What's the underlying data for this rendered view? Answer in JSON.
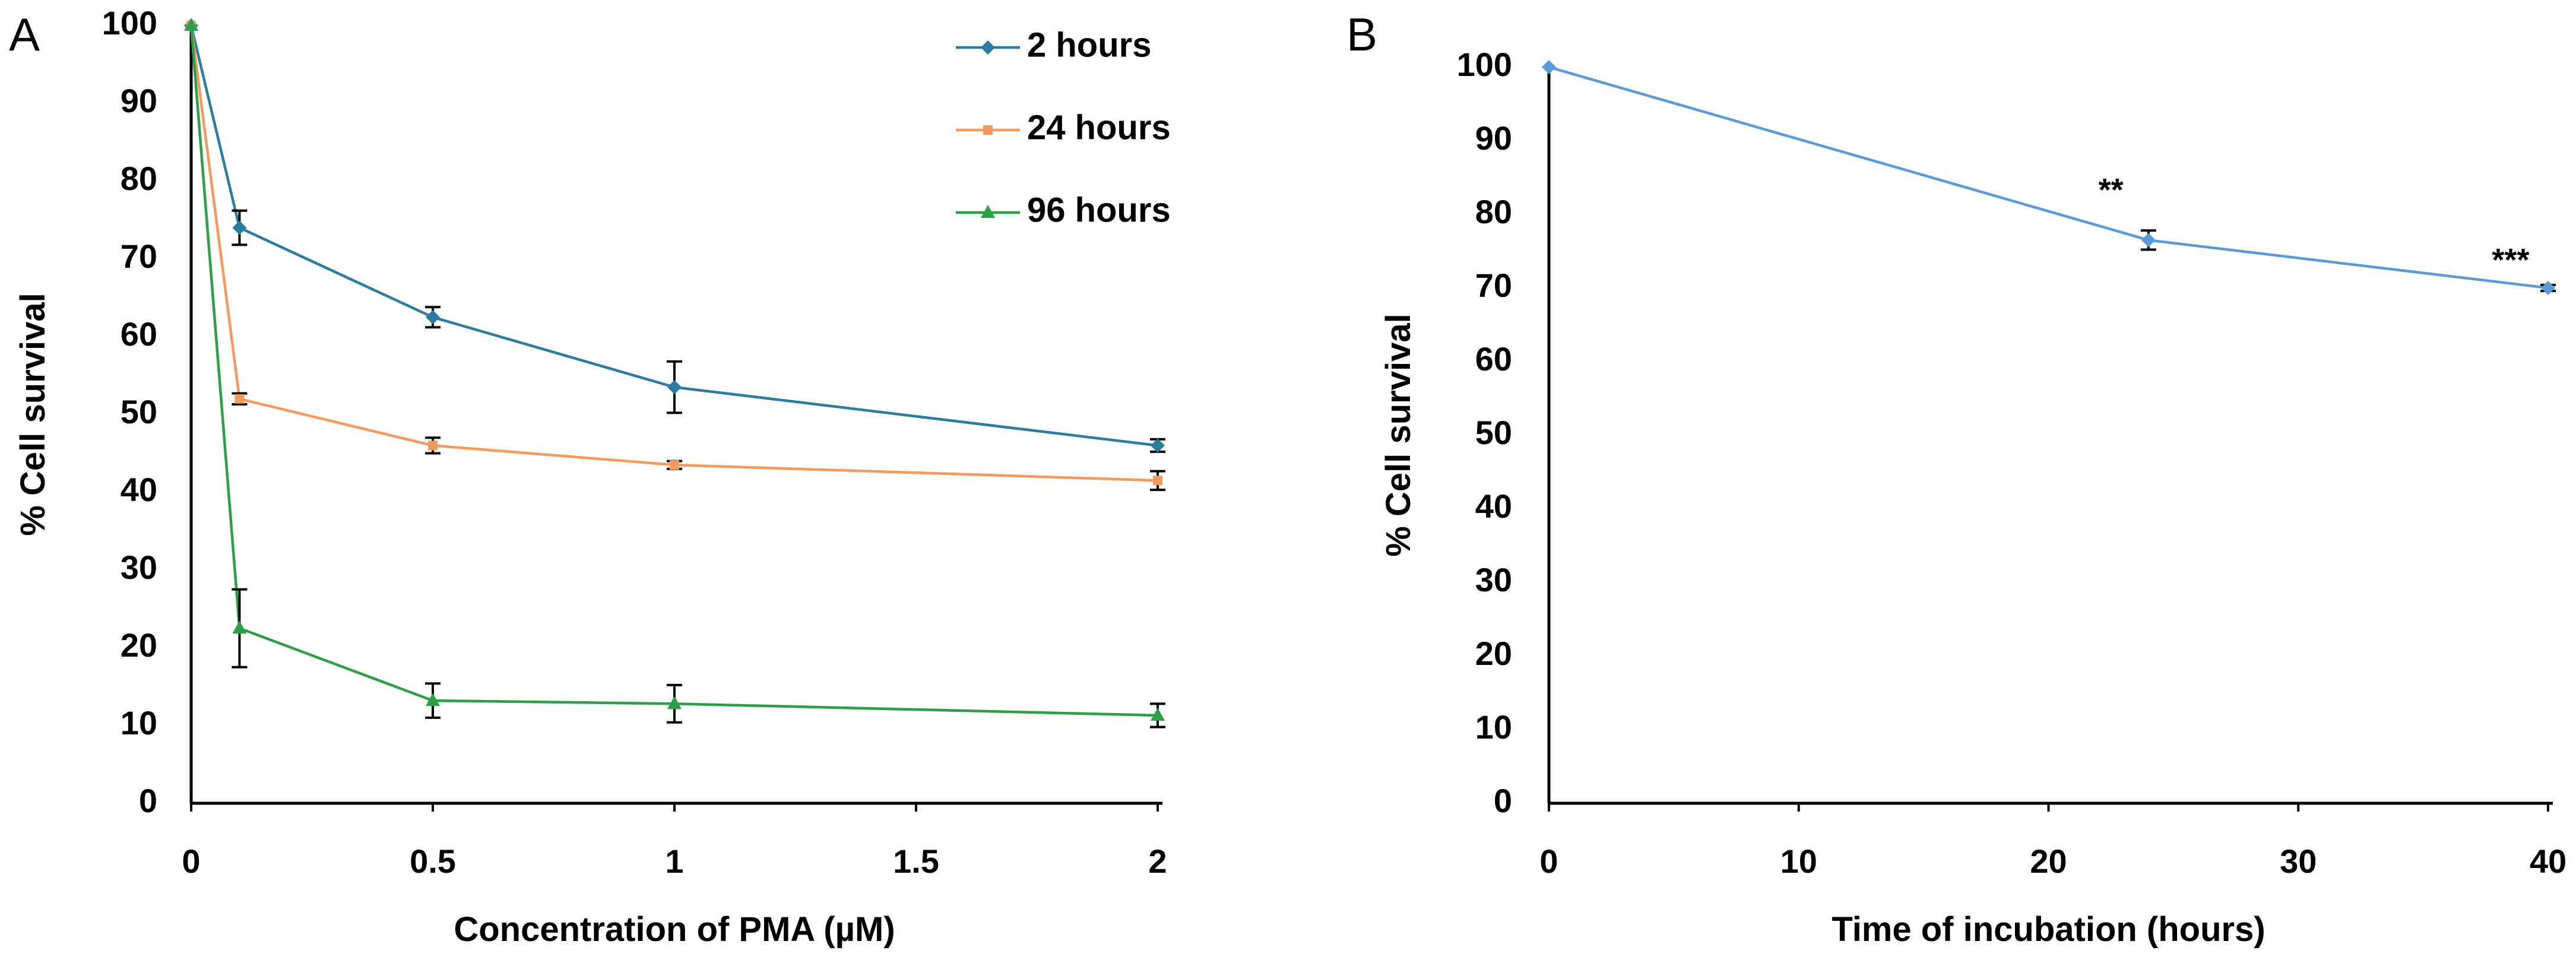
{
  "chart_data": [
    {
      "panel": "A",
      "type": "line",
      "xlabel": "Concentration of PMA (µM)",
      "ylabel": "% Cell survival",
      "xlim": [
        0,
        2
      ],
      "ylim": [
        0,
        100
      ],
      "xticks": [
        "0",
        "0.5",
        "1",
        "1.5",
        "2"
      ],
      "yticks": [
        "0",
        "10",
        "20",
        "30",
        "40",
        "50",
        "60",
        "70",
        "80",
        "90",
        "100"
      ],
      "grid": false,
      "legend_position": "top-right",
      "x": [
        0,
        0.1,
        0.5,
        1,
        2
      ],
      "series": [
        {
          "name": "2 hours",
          "color": "#2b7c9e",
          "marker": "diamond",
          "values": [
            100,
            74,
            62.5,
            53.5,
            46
          ],
          "errors": [
            0,
            2.2,
            1.3,
            3.3,
            0.8
          ]
        },
        {
          "name": "24 hours",
          "color": "#f39a5e",
          "marker": "square",
          "values": [
            100,
            52,
            46,
            43.5,
            41.5
          ],
          "errors": [
            0,
            0.7,
            1,
            0.5,
            1.2
          ]
        },
        {
          "name": "96 hours",
          "color": "#2e9e47",
          "marker": "triangle",
          "values": [
            100,
            22.5,
            13.2,
            12.8,
            11.3
          ],
          "errors": [
            0,
            5,
            2.2,
            2.4,
            1.5
          ]
        }
      ]
    },
    {
      "panel": "B",
      "type": "line",
      "xlabel": "Time of incubation (hours)",
      "ylabel": "% Cell survival",
      "xlim": [
        0,
        40
      ],
      "ylim": [
        0,
        100
      ],
      "xticks": [
        "0",
        "10",
        "20",
        "30",
        "40"
      ],
      "yticks": [
        "0",
        "10",
        "20",
        "30",
        "40",
        "50",
        "60",
        "70",
        "80",
        "90",
        "100"
      ],
      "grid": false,
      "x": [
        0,
        24,
        40
      ],
      "series": [
        {
          "color": "#5b9bd5",
          "marker": "diamond",
          "values": [
            100,
            76.5,
            70
          ],
          "errors": [
            0,
            1.3,
            0.4
          ]
        }
      ],
      "annotations": [
        {
          "text": "**",
          "x": 22.5,
          "y": 83
        },
        {
          "text": "***",
          "x": 38.5,
          "y": 73.5
        }
      ]
    }
  ]
}
